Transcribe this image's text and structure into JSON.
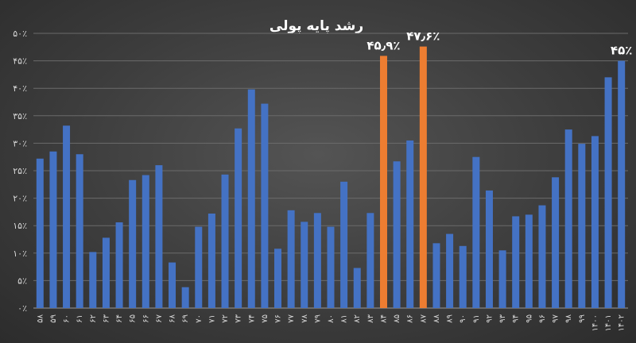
{
  "chart_data": {
    "type": "bar",
    "title": "رشد پایه پولی",
    "xlabel": "",
    "ylabel": "",
    "ylim": [
      0,
      50
    ],
    "yticks": [
      "۰٪",
      "۵٪",
      "۱۰٪",
      "۱۵٪",
      "۲۰٪",
      "۲۵٪",
      "۳۰٪",
      "۳۵٪",
      "۴۰٪",
      "۴۵٪",
      "۵۰٪"
    ],
    "grid": true,
    "legend": "none",
    "colors": {
      "default": "#4472C4",
      "highlight": "#ED7D31"
    },
    "categories": [
      "۵۸",
      "۵۹",
      "۶۰",
      "۶۱",
      "۶۲",
      "۶۳",
      "۶۴",
      "۶۵",
      "۶۶",
      "۶۷",
      "۶۸",
      "۶۹",
      "۷۰",
      "۷۱",
      "۷۲",
      "۷۳",
      "۷۴",
      "۷۵",
      "۷۶",
      "۷۷",
      "۷۸",
      "۷۹",
      "۸۰",
      "۸۱",
      "۸۲",
      "۸۳",
      "۸۴",
      "۸۵",
      "۸۶",
      "۸۷",
      "۸۸",
      "۸۹",
      "۹۰",
      "۹۱",
      "۹۲",
      "۹۳",
      "۹۴",
      "۹۵",
      "۹۶",
      "۹۷",
      "۹۸",
      "۹۹",
      "۱۴۰۰",
      "۱۴۰۱",
      "۱۴۰۲"
    ],
    "values": [
      27.2,
      28.5,
      33.2,
      28.0,
      10.2,
      12.8,
      15.6,
      23.3,
      24.2,
      26.0,
      8.3,
      3.8,
      14.8,
      17.2,
      24.3,
      32.7,
      39.8,
      37.2,
      10.8,
      17.8,
      15.7,
      17.3,
      14.8,
      23.0,
      7.3,
      17.3,
      45.9,
      26.7,
      30.5,
      47.6,
      11.8,
      13.5,
      11.3,
      27.5,
      21.4,
      10.5,
      16.7,
      17.0,
      18.7,
      23.8,
      32.5,
      29.9,
      31.3,
      42.0,
      45.0
    ],
    "highlight_indices": [
      26,
      29
    ],
    "data_labels": [
      {
        "index": 26,
        "text": "۴۵٫۹٪"
      },
      {
        "index": 29,
        "text": "۴۷٫۶٪"
      },
      {
        "index": 44,
        "text": "۴۵٪"
      }
    ]
  }
}
